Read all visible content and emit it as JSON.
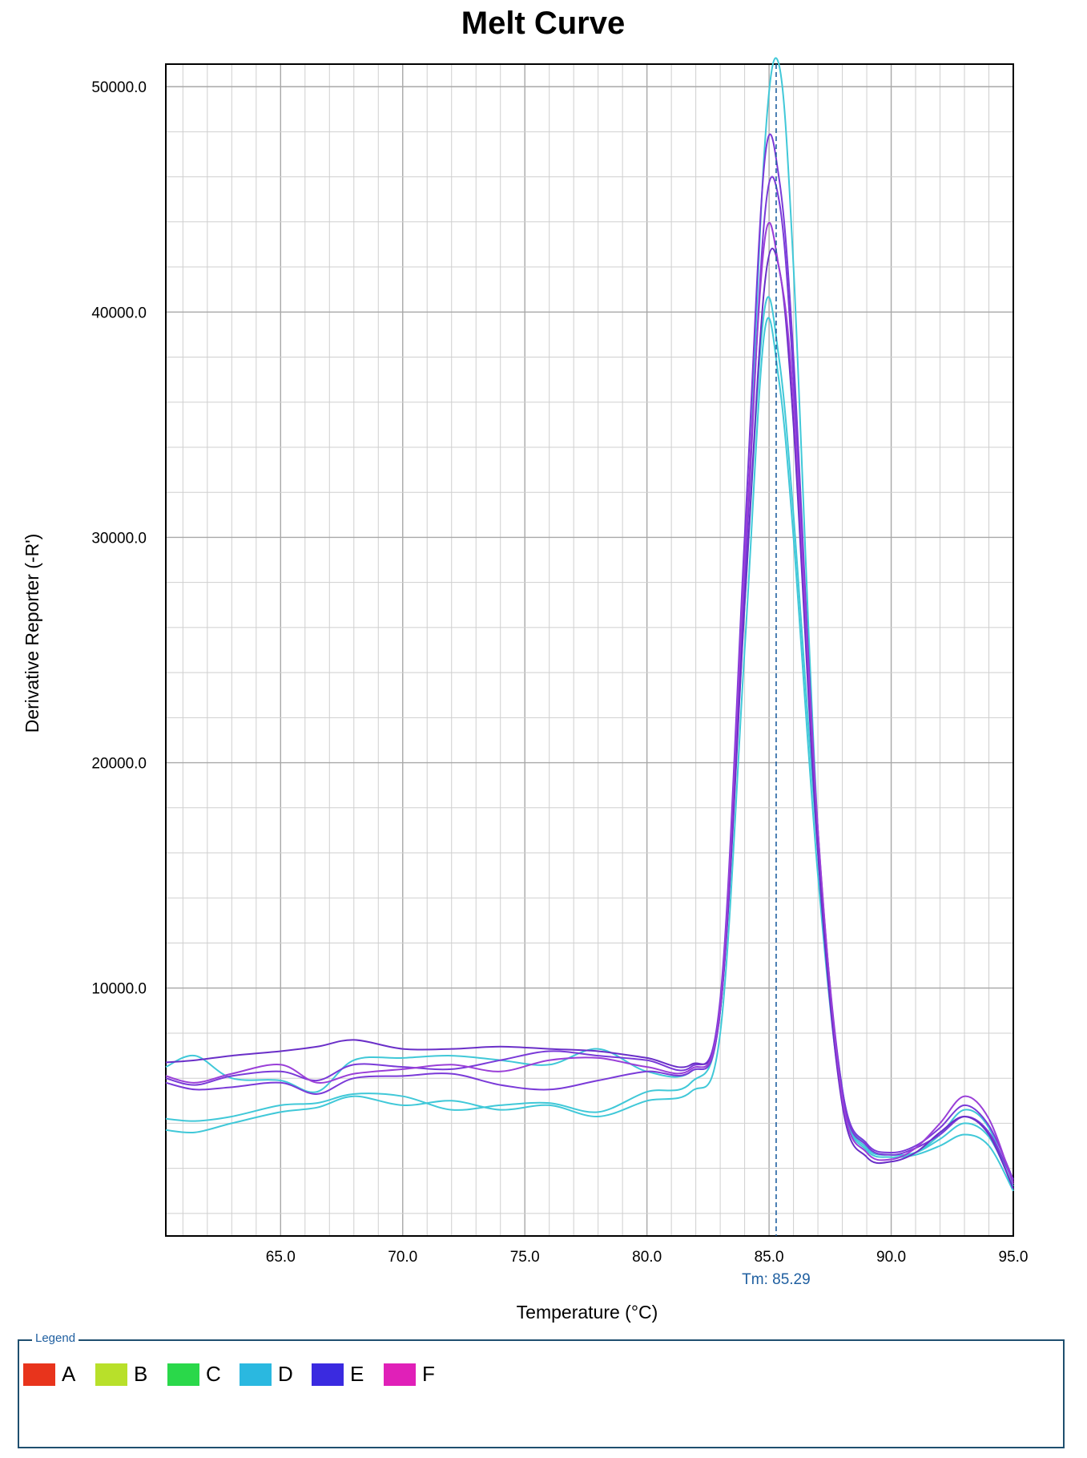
{
  "chart_data": {
    "type": "line",
    "title": "Melt Curve",
    "xlabel": "Temperature (°C)",
    "ylabel": "Derivative Reporter (-R')",
    "xlim": [
      60.3,
      95.0
    ],
    "ylim": [
      -1000,
      51000
    ],
    "x_ticks": [
      65.0,
      70.0,
      75.0,
      80.0,
      85.0,
      90.0,
      95.0
    ],
    "x_tick_labels": [
      "65.0",
      "70.0",
      "75.0",
      "80.0",
      "85.0",
      "90.0",
      "95.0"
    ],
    "y_ticks": [
      10000,
      20000,
      30000,
      40000,
      50000
    ],
    "y_tick_labels": [
      "10000.0",
      "20000.0",
      "30000.0",
      "40000.0",
      "50000.0"
    ],
    "grid": true,
    "threshold_marker": {
      "x": 85.29,
      "label": "Tm: 85.29"
    },
    "series": [
      {
        "color": "#40c8d8",
        "x": [
          60.3,
          61.5,
          63,
          65,
          66.5,
          68,
          70,
          72,
          74,
          76,
          78,
          80,
          81.8,
          83,
          84,
          84.8,
          85.4,
          86,
          87,
          88,
          89,
          90,
          91,
          92,
          93,
          94,
          95
        ],
        "y": [
          6500,
          7000,
          6000,
          5900,
          5400,
          6800,
          6900,
          7000,
          6800,
          6600,
          7300,
          6300,
          6300,
          9000,
          28000,
          47000,
          51000,
          42000,
          17000,
          5500,
          3000,
          2600,
          2700,
          3500,
          4600,
          3800,
          1000
        ]
      },
      {
        "color": "#40c8d8",
        "x": [
          60.3,
          61.5,
          63,
          65,
          66.5,
          68,
          70,
          72,
          74,
          76,
          78,
          80,
          81.8,
          83,
          84,
          84.8,
          85.4,
          86,
          87,
          88,
          89,
          90,
          91,
          92,
          93,
          94,
          95
        ],
        "y": [
          3700,
          3600,
          4000,
          4500,
          4700,
          5200,
          4800,
          5000,
          4600,
          4800,
          4300,
          5000,
          5400,
          8000,
          25000,
          39000,
          37000,
          30000,
          15000,
          5000,
          2800,
          2500,
          2600,
          3000,
          3500,
          3000,
          1000
        ]
      },
      {
        "color": "#40c8d8",
        "x": [
          60.3,
          61.5,
          63,
          65,
          66.5,
          68,
          70,
          72,
          74,
          76,
          78,
          80,
          81.8,
          83,
          84,
          84.8,
          85.4,
          86,
          87,
          88,
          89,
          90,
          91,
          92,
          93,
          94,
          95
        ],
        "y": [
          4200,
          4100,
          4300,
          4800,
          4900,
          5300,
          5200,
          4600,
          4800,
          4900,
          4500,
          5400,
          5800,
          9000,
          27000,
          40000,
          38000,
          31000,
          16000,
          5200,
          2900,
          2600,
          2700,
          3300,
          4000,
          3400,
          1200
        ]
      },
      {
        "color": "#7a3ad8",
        "x": [
          60.3,
          61.5,
          63,
          65,
          66.5,
          68,
          70,
          72,
          74,
          76,
          78,
          80,
          81.8,
          83,
          84,
          84.8,
          85.4,
          86,
          87,
          88,
          89,
          90,
          91,
          92,
          93,
          94,
          95
        ],
        "y": [
          6000,
          5700,
          6100,
          6300,
          5900,
          6600,
          6500,
          6400,
          6800,
          7200,
          7000,
          6800,
          6500,
          9500,
          30000,
          46500,
          46000,
          38000,
          17000,
          5500,
          3100,
          2700,
          3000,
          3800,
          4800,
          3900,
          1500
        ]
      },
      {
        "color": "#7a3ad8",
        "x": [
          60.3,
          61.5,
          63,
          65,
          66.5,
          68,
          70,
          72,
          74,
          76,
          78,
          80,
          81.8,
          83,
          84,
          84.8,
          85.4,
          86,
          87,
          88,
          89,
          90,
          91,
          92,
          93,
          94,
          95
        ],
        "y": [
          5800,
          5500,
          5600,
          5800,
          5300,
          6000,
          6100,
          6200,
          5700,
          5500,
          5900,
          6300,
          6300,
          9000,
          28000,
          44000,
          45000,
          37000,
          16500,
          5300,
          3000,
          2600,
          2900,
          3500,
          4300,
          3600,
          1400
        ]
      },
      {
        "color": "#6a2fc8",
        "x": [
          60.3,
          61.5,
          63,
          65,
          66.5,
          68,
          70,
          72,
          74,
          76,
          78,
          80,
          81.8,
          83,
          84,
          84.8,
          85.4,
          86,
          87,
          88,
          89,
          90,
          91,
          92,
          93,
          94,
          95
        ],
        "y": [
          6700,
          6800,
          7000,
          7200,
          7400,
          7700,
          7300,
          7300,
          7400,
          7300,
          7200,
          6900,
          6600,
          9000,
          27000,
          41000,
          42000,
          35000,
          16000,
          4800,
          2500,
          2300,
          2700,
          3600,
          4300,
          3500,
          1100
        ]
      },
      {
        "color": "#9a3fd8",
        "x": [
          60.3,
          61.5,
          63,
          65,
          66.5,
          68,
          70,
          72,
          74,
          76,
          78,
          80,
          81.8,
          83,
          84,
          84.8,
          85.4,
          86,
          87,
          88,
          89,
          90,
          91,
          92,
          93,
          94,
          95
        ],
        "y": [
          6100,
          5800,
          6200,
          6600,
          5800,
          6200,
          6400,
          6600,
          6300,
          6800,
          6900,
          6500,
          6400,
          9200,
          29000,
          43000,
          42000,
          36000,
          17000,
          5100,
          2700,
          2400,
          2900,
          4000,
          5200,
          4200,
          1300
        ]
      }
    ]
  },
  "legend": {
    "title": "Legend",
    "items": [
      {
        "label": "A",
        "color": "#e8341c"
      },
      {
        "label": "B",
        "color": "#b8e02a"
      },
      {
        "label": "C",
        "color": "#2ad84a"
      },
      {
        "label": "D",
        "color": "#2ab8e0"
      },
      {
        "label": "E",
        "color": "#3a2ae0"
      },
      {
        "label": "F",
        "color": "#e020b8"
      }
    ]
  }
}
